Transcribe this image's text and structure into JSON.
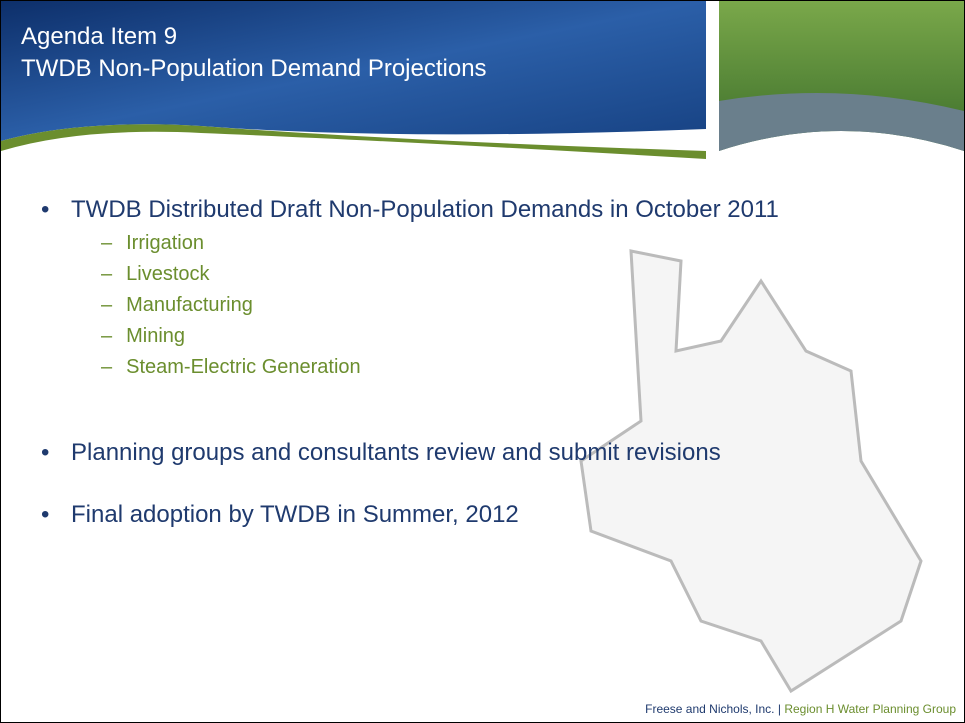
{
  "header": {
    "title_line1": "Agenda Item 9",
    "title_line2": "TWDB Non-Population Demand Projections"
  },
  "bullets": [
    {
      "text": "TWDB Distributed Draft Non-Population Demands in October 2011",
      "subitems": [
        "Irrigation",
        "Livestock",
        "Manufacturing",
        "Mining",
        "Steam-Electric Generation"
      ]
    },
    {
      "text": "Planning groups and consultants review and submit revisions"
    },
    {
      "text": "Final adoption by TWDB in Summer, 2012"
    }
  ],
  "footer": {
    "company": "Freese and Nichols, Inc.",
    "separator": "|",
    "group": "Region H Water Planning Group"
  }
}
